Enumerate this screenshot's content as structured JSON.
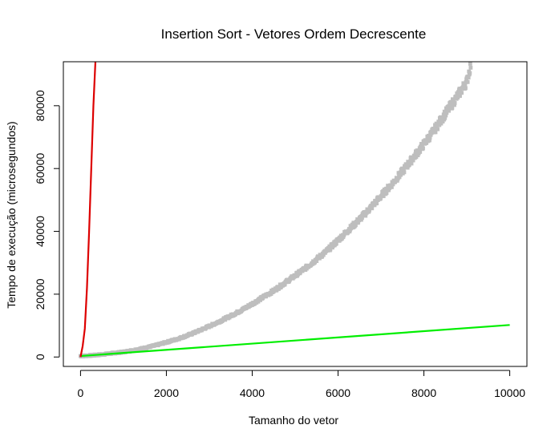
{
  "chart_data": {
    "type": "line",
    "title": "Insertion Sort - Vetores Ordem Decrescente",
    "xlabel": "Tamanho do vetor",
    "ylabel": "Tempo de execução (microsegundos)",
    "xlim": [
      -400,
      10400
    ],
    "ylim": [
      -3000,
      94000
    ],
    "xticks": [
      0,
      2000,
      4000,
      6000,
      8000,
      10000
    ],
    "yticks": [
      0,
      20000,
      40000,
      60000,
      80000
    ],
    "grid": false,
    "legend": "none",
    "series": [
      {
        "color": "#bebebe",
        "style": "points",
        "x": [
          0,
          250,
          500,
          750,
          1000,
          1250,
          1500,
          1750,
          2000,
          2250,
          2500,
          2750,
          3000,
          3250,
          3500,
          3750,
          4000,
          4250,
          4500,
          4750,
          5000,
          5250,
          5500,
          5750,
          6000,
          6250,
          6500,
          6750,
          7000,
          7250,
          7500,
          7750,
          8000,
          8250,
          8500,
          8750,
          9000,
          9100
        ],
        "y": [
          300,
          500,
          800,
          1200,
          1600,
          2200,
          2900,
          3700,
          4700,
          5700,
          6900,
          8300,
          9800,
          11400,
          13100,
          14900,
          16900,
          19000,
          21100,
          23500,
          25900,
          28400,
          31100,
          33900,
          37200,
          40500,
          43800,
          47400,
          51200,
          55000,
          59100,
          63400,
          67800,
          72400,
          77500,
          82400,
          87700,
          93500
        ]
      },
      {
        "color": "#00ee00",
        "style": "line",
        "x": [
          0,
          10000
        ],
        "y": [
          300,
          10200
        ]
      },
      {
        "color": "#dd0000",
        "style": "line",
        "x": [
          0,
          50,
          100,
          150,
          200,
          250,
          300,
          350
        ],
        "y": [
          0,
          3500,
          9000,
          22000,
          40000,
          60000,
          80000,
          95000
        ]
      }
    ]
  }
}
